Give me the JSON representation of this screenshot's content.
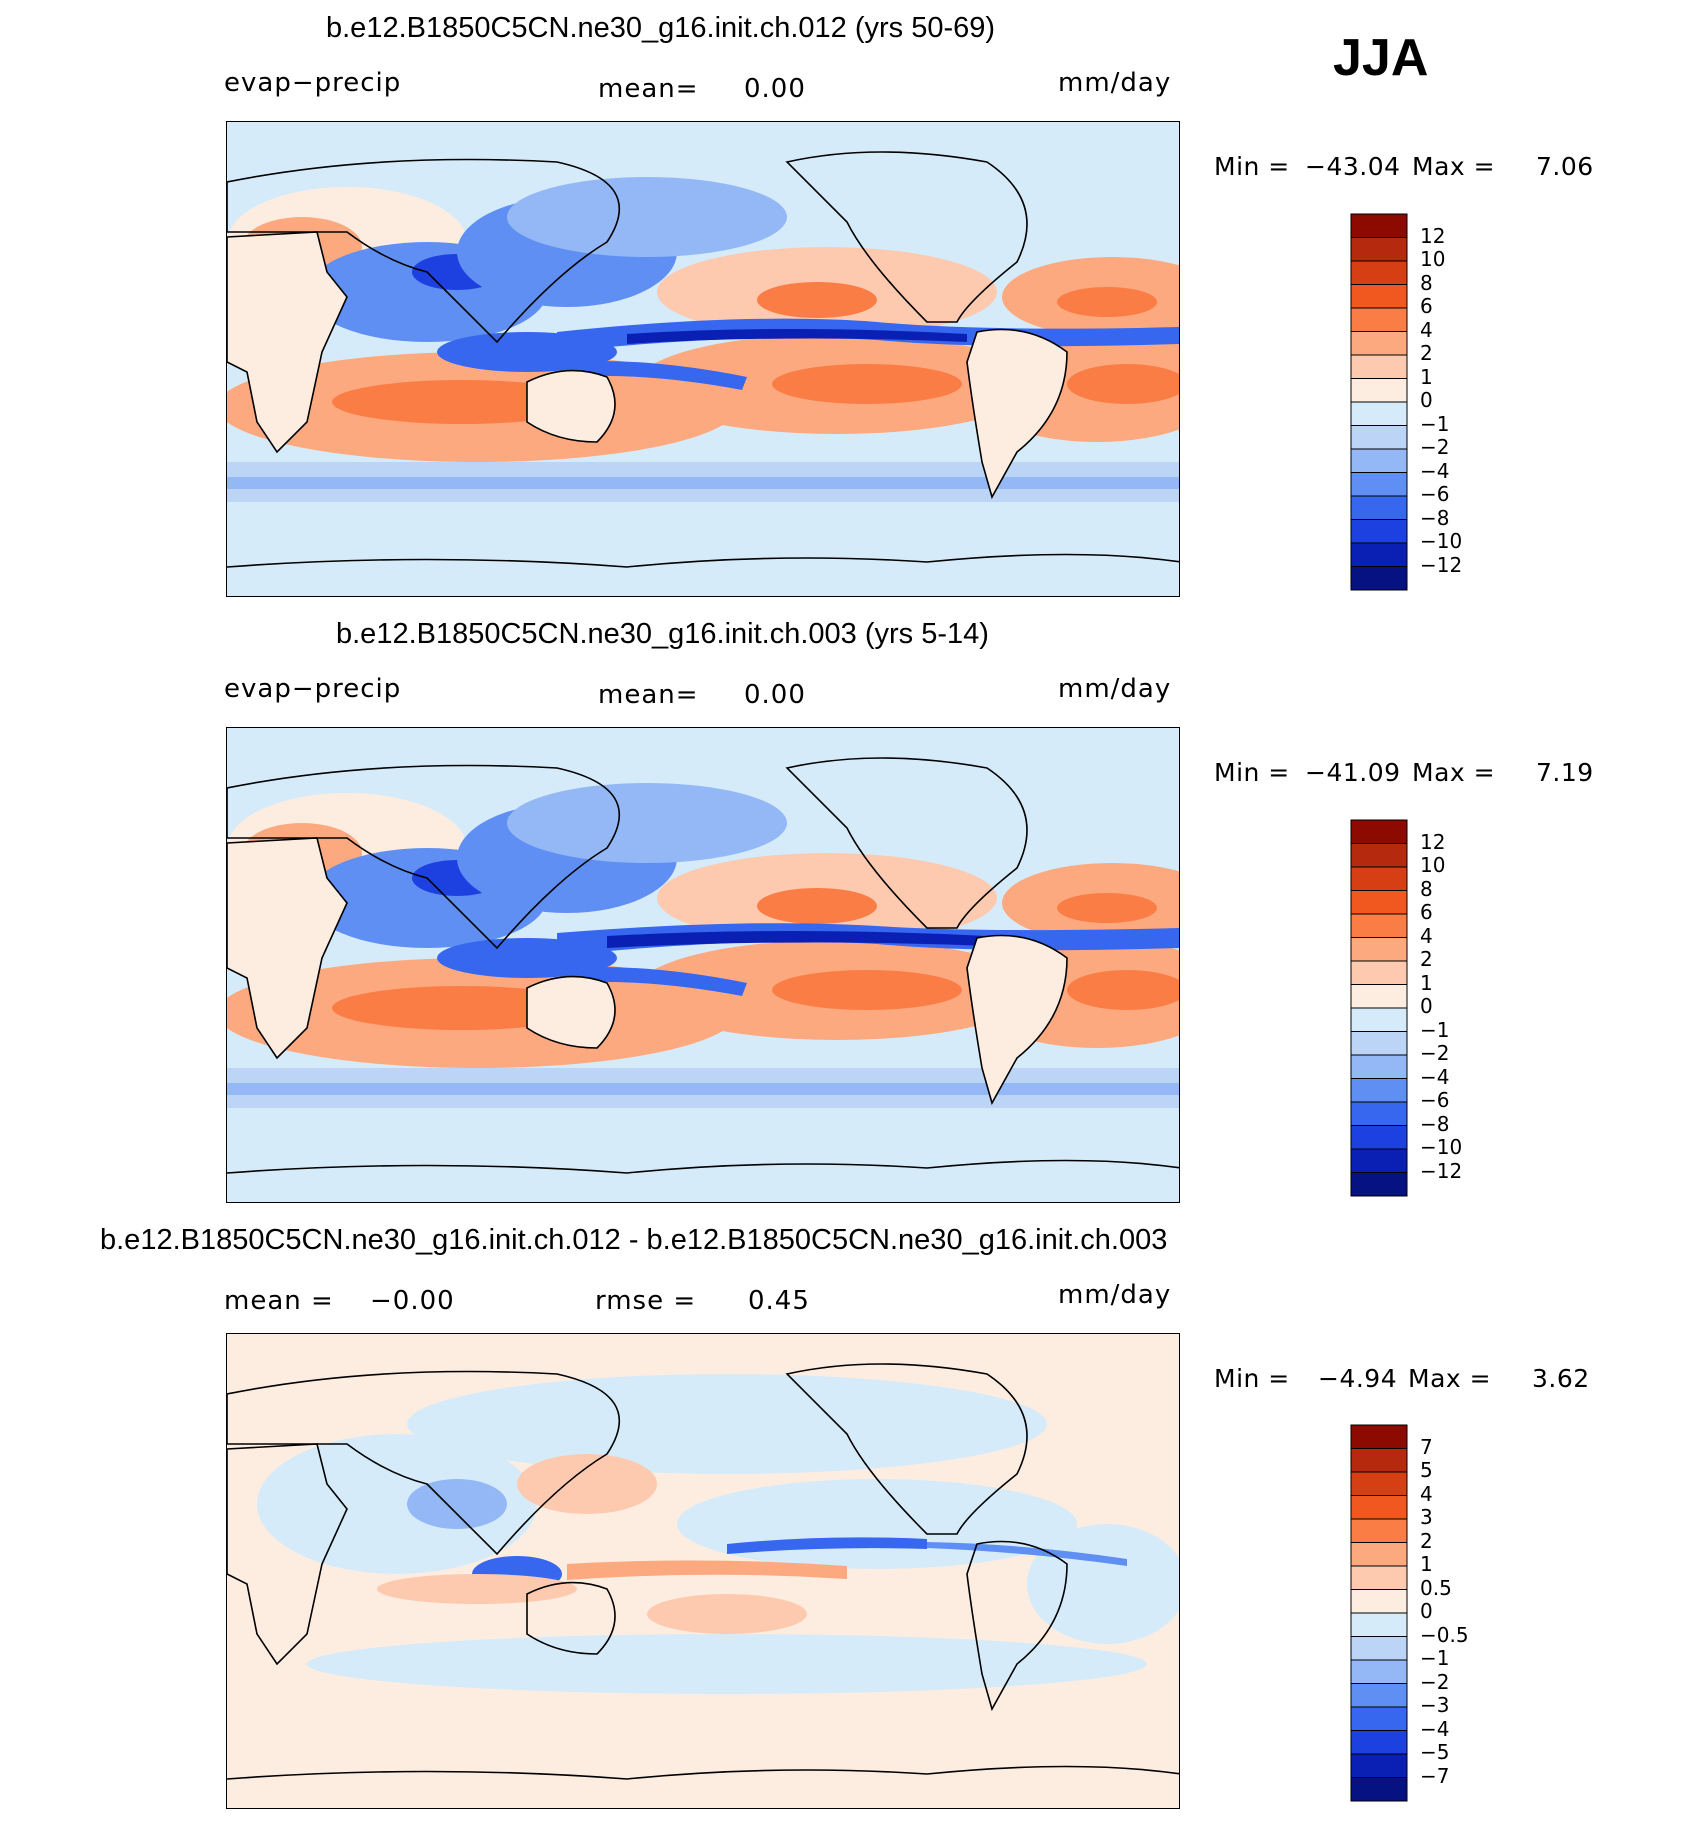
{
  "season": "JJA",
  "chart_data": [
    {
      "type": "heatmap",
      "title": "b.e12.B1850C5CN.ne30_g16.init.ch.012 (yrs 50-69)",
      "variable": "evap−precip",
      "units": "mm/day",
      "mean_label": "mean=",
      "mean_value": "0.00",
      "min_label": "Min  =",
      "min_value": "−43.04",
      "max_label": "Max  =",
      "max_value": "7.06",
      "levels": [
        "12",
        "10",
        "8",
        "6",
        "4",
        "2",
        "1",
        "0",
        "−1",
        "−2",
        "−4",
        "−6",
        "−8",
        "−10",
        "−12"
      ],
      "colors": [
        "#8c0a00",
        "#b52a0e",
        "#d63f14",
        "#f0581f",
        "#fb7d46",
        "#fca97f",
        "#fdcab0",
        "#fdece0",
        "#d6ebfa",
        "#bcd5f7",
        "#93b8f5",
        "#5f8ff2",
        "#3667ee",
        "#1d40e0",
        "#0a20b4",
        "#061182"
      ]
    },
    {
      "type": "heatmap",
      "title": "b.e12.B1850C5CN.ne30_g16.init.ch.003 (yrs 5-14)",
      "variable": "evap−precip",
      "units": "mm/day",
      "mean_label": "mean=",
      "mean_value": "0.00",
      "min_label": "Min  =",
      "min_value": "−41.09",
      "max_label": "Max  =",
      "max_value": "7.19",
      "levels": [
        "12",
        "10",
        "8",
        "6",
        "4",
        "2",
        "1",
        "0",
        "−1",
        "−2",
        "−4",
        "−6",
        "−8",
        "−10",
        "−12"
      ],
      "colors": [
        "#8c0a00",
        "#b52a0e",
        "#d63f14",
        "#f0581f",
        "#fb7d46",
        "#fca97f",
        "#fdcab0",
        "#fdece0",
        "#d6ebfa",
        "#bcd5f7",
        "#93b8f5",
        "#5f8ff2",
        "#3667ee",
        "#1d40e0",
        "#0a20b4",
        "#061182"
      ]
    },
    {
      "type": "heatmap",
      "title": "b.e12.B1850C5CN.ne30_g16.init.ch.012 - b.e12.B1850C5CN.ne30_g16.init.ch.003",
      "units": "mm/day",
      "mean_label": "mean =",
      "mean_value": "−0.00",
      "rmse_label": "rmse =",
      "rmse_value": "0.45",
      "min_label": "Min  =",
      "min_value": "−4.94",
      "max_label": "Max  =",
      "max_value": "3.62",
      "levels": [
        "7",
        "5",
        "4",
        "3",
        "2",
        "1",
        "0.5",
        "0",
        "−0.5",
        "−1",
        "−2",
        "−3",
        "−4",
        "−5",
        "−7"
      ],
      "colors": [
        "#8c0a00",
        "#b52a0e",
        "#d63f14",
        "#f0581f",
        "#fb7d46",
        "#fca97f",
        "#fdcab0",
        "#fdece0",
        "#d6ebfa",
        "#bcd5f7",
        "#93b8f5",
        "#5f8ff2",
        "#3667ee",
        "#1d40e0",
        "#0a20b4",
        "#061182"
      ]
    }
  ]
}
